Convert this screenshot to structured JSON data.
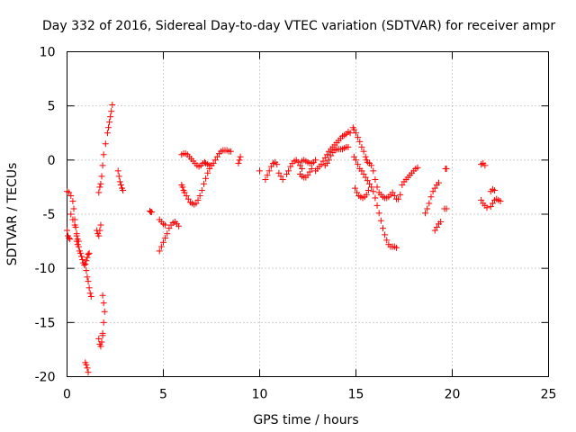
{
  "chart_data": {
    "type": "scatter",
    "title": "Day 332 of 2016, Sidereal Day-to-day VTEC variation (SDTVAR) for receiver ampr",
    "xlabel": "GPS time / hours",
    "ylabel": "SDTVAR / TECUs",
    "xlim": [
      0,
      25
    ],
    "ylim": [
      -20,
      10
    ],
    "xticks": [
      0,
      5,
      10,
      15,
      20,
      25
    ],
    "yticks": [
      10,
      5,
      0,
      -5,
      -10,
      -15,
      -20
    ],
    "grid": true,
    "marker": "plus",
    "marker_color": "#ff0000",
    "tracks": [
      [
        [
          0.0,
          -6.5
        ],
        [
          0.05,
          -7.0
        ],
        [
          0.1,
          -7.2
        ],
        [
          0.15,
          -7.3
        ]
      ],
      [
        [
          0.0,
          -2.9
        ],
        [
          0.1,
          -3.0
        ],
        [
          0.2,
          -3.3
        ],
        [
          0.3,
          -3.8
        ],
        [
          0.35,
          -4.5
        ],
        [
          0.4,
          -5.5
        ],
        [
          0.45,
          -6.2
        ],
        [
          0.5,
          -7.0
        ],
        [
          0.55,
          -7.3
        ],
        [
          0.6,
          -7.5
        ]
      ],
      [
        [
          0.2,
          -5.0
        ],
        [
          0.3,
          -5.5
        ],
        [
          0.4,
          -6.0
        ],
        [
          0.5,
          -6.8
        ]
      ],
      [
        [
          0.5,
          -7.5
        ],
        [
          0.55,
          -7.8
        ],
        [
          0.6,
          -8.0
        ],
        [
          0.65,
          -8.4
        ],
        [
          0.7,
          -8.6
        ],
        [
          0.75,
          -8.9
        ],
        [
          0.8,
          -9.2
        ],
        [
          0.85,
          -9.5
        ],
        [
          0.9,
          -9.7
        ],
        [
          0.95,
          -9.6
        ],
        [
          1.0,
          -9.3
        ],
        [
          1.05,
          -9.0
        ],
        [
          1.1,
          -8.7
        ],
        [
          1.15,
          -8.6
        ]
      ],
      [
        [
          1.0,
          -10.2
        ],
        [
          1.05,
          -10.8
        ],
        [
          1.1,
          -11.2
        ],
        [
          1.15,
          -11.8
        ],
        [
          1.2,
          -12.3
        ],
        [
          1.25,
          -12.6
        ]
      ],
      [
        [
          0.95,
          -18.7
        ],
        [
          1.0,
          -18.9
        ],
        [
          1.05,
          -19.2
        ],
        [
          1.1,
          -19.6
        ]
      ],
      [
        [
          1.55,
          -6.5
        ],
        [
          1.6,
          -6.8
        ],
        [
          1.65,
          -7.0
        ],
        [
          1.7,
          -6.5
        ],
        [
          1.75,
          -6.0
        ]
      ],
      [
        [
          1.65,
          -16.5
        ],
        [
          1.7,
          -17.0
        ],
        [
          1.75,
          -17.2
        ],
        [
          1.8,
          -16.8
        ],
        [
          1.85,
          -16.2
        ]
      ],
      [
        [
          1.65,
          -3.0
        ],
        [
          1.7,
          -2.5
        ],
        [
          1.75,
          -2.2
        ],
        [
          1.8,
          -1.5
        ]
      ],
      [
        [
          1.85,
          -12.5
        ],
        [
          1.9,
          -13.2
        ],
        [
          1.95,
          -14.0
        ],
        [
          1.9,
          -15.0
        ],
        [
          1.85,
          -16.0
        ]
      ],
      [
        [
          1.85,
          -0.5
        ],
        [
          1.9,
          0.5
        ],
        [
          2.0,
          1.5
        ],
        [
          2.1,
          2.5
        ],
        [
          2.15,
          3.0
        ],
        [
          2.2,
          3.5
        ],
        [
          2.25,
          4.0
        ],
        [
          2.3,
          4.5
        ],
        [
          2.35,
          5.1
        ]
      ],
      [
        [
          2.65,
          -1.0
        ],
        [
          2.7,
          -1.5
        ],
        [
          2.75,
          -2.0
        ],
        [
          2.8,
          -2.3
        ],
        [
          2.85,
          -2.6
        ],
        [
          2.9,
          -2.8
        ]
      ],
      [
        [
          4.3,
          -4.7
        ],
        [
          4.35,
          -4.8
        ],
        [
          4.4,
          -4.8
        ]
      ],
      [
        [
          4.8,
          -8.4
        ],
        [
          4.9,
          -8.0
        ],
        [
          5.0,
          -7.6
        ],
        [
          5.1,
          -7.2
        ],
        [
          5.2,
          -6.8
        ],
        [
          5.3,
          -6.3
        ],
        [
          5.4,
          -6.0
        ],
        [
          5.5,
          -5.8
        ],
        [
          5.6,
          -5.7
        ],
        [
          5.7,
          -5.9
        ],
        [
          5.8,
          -6.1
        ]
      ],
      [
        [
          4.8,
          -5.5
        ],
        [
          4.9,
          -5.7
        ],
        [
          5.0,
          -5.9
        ],
        [
          5.1,
          -6.0
        ]
      ],
      [
        [
          5.95,
          -2.3
        ],
        [
          6.0,
          -2.5
        ],
        [
          6.05,
          -2.8
        ],
        [
          6.1,
          -3.0
        ],
        [
          6.2,
          -3.3
        ],
        [
          6.3,
          -3.6
        ],
        [
          6.4,
          -3.9
        ],
        [
          6.5,
          -4.0
        ],
        [
          6.6,
          -4.1
        ],
        [
          6.7,
          -4.0
        ],
        [
          6.8,
          -3.7
        ],
        [
          6.9,
          -3.3
        ],
        [
          7.0,
          -2.8
        ],
        [
          7.1,
          -2.2
        ],
        [
          7.2,
          -1.7
        ],
        [
          7.3,
          -1.2
        ],
        [
          7.4,
          -0.8
        ],
        [
          7.5,
          -0.5
        ]
      ],
      [
        [
          5.95,
          0.5
        ],
        [
          6.05,
          0.6
        ],
        [
          6.15,
          0.6
        ],
        [
          6.25,
          0.5
        ],
        [
          6.35,
          0.3
        ],
        [
          6.45,
          0.1
        ],
        [
          6.55,
          -0.1
        ],
        [
          6.65,
          -0.3
        ],
        [
          6.75,
          -0.5
        ],
        [
          6.85,
          -0.6
        ],
        [
          6.95,
          -0.5
        ],
        [
          7.05,
          -0.3
        ],
        [
          7.15,
          -0.2
        ]
      ],
      [
        [
          7.2,
          -0.3
        ],
        [
          7.3,
          -0.4
        ],
        [
          7.4,
          -0.5
        ],
        [
          7.5,
          -0.5
        ],
        [
          7.6,
          -0.3
        ],
        [
          7.7,
          0.0
        ],
        [
          7.8,
          0.3
        ],
        [
          7.9,
          0.6
        ],
        [
          8.0,
          0.8
        ],
        [
          8.1,
          0.9
        ],
        [
          8.2,
          0.9
        ],
        [
          8.3,
          0.9
        ],
        [
          8.4,
          0.8
        ],
        [
          8.5,
          0.8
        ]
      ],
      [
        [
          8.9,
          -0.3
        ],
        [
          8.95,
          0.0
        ],
        [
          9.0,
          0.3
        ]
      ],
      [
        [
          10.0,
          -1.0
        ]
      ],
      [
        [
          10.3,
          -1.8
        ],
        [
          10.4,
          -1.4
        ],
        [
          10.5,
          -1.0
        ],
        [
          10.6,
          -0.6
        ],
        [
          10.7,
          -0.3
        ],
        [
          10.8,
          -0.2
        ],
        [
          10.9,
          -0.4
        ]
      ],
      [
        [
          11.0,
          -1.2
        ],
        [
          11.1,
          -1.5
        ],
        [
          11.2,
          -1.8
        ]
      ],
      [
        [
          11.4,
          -1.3
        ],
        [
          11.5,
          -1.0
        ],
        [
          11.6,
          -0.6
        ],
        [
          11.7,
          -0.3
        ],
        [
          11.8,
          -0.1
        ],
        [
          11.9,
          0.0
        ],
        [
          12.0,
          -0.2
        ],
        [
          12.1,
          -0.5
        ],
        [
          12.2,
          -0.8
        ]
      ],
      [
        [
          12.1,
          -1.3
        ],
        [
          12.2,
          -1.5
        ],
        [
          12.3,
          -1.6
        ],
        [
          12.4,
          -1.6
        ],
        [
          12.5,
          -1.4
        ],
        [
          12.6,
          -1.1
        ],
        [
          12.7,
          -0.8
        ]
      ],
      [
        [
          12.2,
          -0.1
        ],
        [
          12.3,
          0.0
        ],
        [
          12.4,
          -0.1
        ],
        [
          12.5,
          -0.2
        ],
        [
          12.6,
          -0.3
        ],
        [
          12.7,
          -0.3
        ],
        [
          12.8,
          -0.2
        ],
        [
          12.9,
          0.0
        ]
      ],
      [
        [
          12.9,
          -1.0
        ],
        [
          13.0,
          -0.8
        ],
        [
          13.1,
          -0.6
        ],
        [
          13.2,
          -0.4
        ],
        [
          13.3,
          -0.1
        ],
        [
          13.4,
          0.2
        ],
        [
          13.5,
          0.5
        ],
        [
          13.6,
          0.8
        ],
        [
          13.7,
          1.0
        ],
        [
          13.8,
          1.2
        ],
        [
          13.9,
          1.4
        ],
        [
          14.0,
          1.6
        ],
        [
          14.1,
          1.8
        ],
        [
          14.2,
          2.0
        ],
        [
          14.3,
          2.2
        ],
        [
          14.4,
          2.3
        ],
        [
          14.5,
          2.4
        ],
        [
          14.6,
          2.6
        ],
        [
          14.7,
          2.5
        ]
      ],
      [
        [
          13.4,
          -0.5
        ],
        [
          13.5,
          -0.3
        ],
        [
          13.6,
          0.0
        ],
        [
          13.7,
          0.4
        ],
        [
          13.8,
          0.7
        ],
        [
          13.9,
          0.9
        ],
        [
          14.0,
          1.0
        ],
        [
          14.1,
          1.0
        ],
        [
          14.2,
          1.0
        ],
        [
          14.3,
          1.0
        ],
        [
          14.4,
          1.1
        ],
        [
          14.5,
          1.2
        ],
        [
          14.6,
          1.2
        ]
      ],
      [
        [
          14.85,
          3.0
        ],
        [
          14.9,
          2.8
        ],
        [
          15.0,
          2.5
        ],
        [
          15.1,
          2.1
        ],
        [
          15.2,
          1.7
        ],
        [
          15.3,
          1.2
        ],
        [
          15.4,
          0.8
        ],
        [
          15.5,
          0.3
        ],
        [
          15.55,
          0.0
        ]
      ],
      [
        [
          14.9,
          0.3
        ],
        [
          15.0,
          0.0
        ],
        [
          15.1,
          -0.4
        ],
        [
          15.2,
          -0.8
        ],
        [
          15.3,
          -1.0
        ],
        [
          15.4,
          -1.3
        ],
        [
          15.5,
          -1.6
        ],
        [
          15.6,
          -1.9
        ],
        [
          15.7,
          -2.2
        ],
        [
          15.8,
          -2.5
        ],
        [
          15.9,
          -2.9
        ],
        [
          16.0,
          -3.5
        ],
        [
          16.1,
          -4.2
        ],
        [
          16.2,
          -4.9
        ],
        [
          16.3,
          -5.6
        ],
        [
          16.4,
          -6.3
        ],
        [
          16.5,
          -6.9
        ],
        [
          16.6,
          -7.4
        ],
        [
          16.7,
          -7.8
        ],
        [
          16.8,
          -8.0
        ],
        [
          16.9,
          -8.0
        ],
        [
          17.0,
          -8.0
        ],
        [
          17.1,
          -8.1
        ]
      ],
      [
        [
          14.95,
          -2.6
        ],
        [
          15.05,
          -3.0
        ],
        [
          15.15,
          -3.3
        ],
        [
          15.25,
          -3.4
        ],
        [
          15.35,
          -3.5
        ],
        [
          15.45,
          -3.4
        ],
        [
          15.55,
          -3.2
        ],
        [
          15.65,
          -2.8
        ]
      ],
      [
        [
          15.6,
          -0.2
        ],
        [
          15.7,
          -0.3
        ],
        [
          15.8,
          -0.5
        ],
        [
          15.9,
          -1.0
        ],
        [
          16.0,
          -1.8
        ],
        [
          16.1,
          -2.5
        ],
        [
          16.2,
          -3.0
        ],
        [
          16.3,
          -3.2
        ],
        [
          16.4,
          -3.4
        ],
        [
          16.5,
          -3.5
        ],
        [
          16.6,
          -3.5
        ],
        [
          16.7,
          -3.4
        ],
        [
          16.8,
          -3.2
        ],
        [
          16.9,
          -3.0
        ],
        [
          17.0,
          -3.3
        ],
        [
          17.1,
          -3.6
        ],
        [
          17.2,
          -3.6
        ],
        [
          17.3,
          -3.2
        ]
      ],
      [
        [
          17.4,
          -2.3
        ],
        [
          17.5,
          -2.0
        ],
        [
          17.6,
          -1.8
        ],
        [
          17.7,
          -1.6
        ],
        [
          17.8,
          -1.4
        ],
        [
          17.9,
          -1.2
        ],
        [
          18.0,
          -1.0
        ],
        [
          18.1,
          -0.8
        ],
        [
          18.2,
          -0.7
        ]
      ],
      [
        [
          18.6,
          -4.9
        ],
        [
          18.7,
          -4.5
        ],
        [
          18.8,
          -4.0
        ],
        [
          18.9,
          -3.4
        ],
        [
          19.0,
          -2.9
        ],
        [
          19.1,
          -2.6
        ],
        [
          19.2,
          -2.3
        ],
        [
          19.3,
          -2.1
        ]
      ],
      [
        [
          19.1,
          -6.5
        ],
        [
          19.2,
          -6.2
        ],
        [
          19.3,
          -5.9
        ],
        [
          19.4,
          -5.7
        ]
      ],
      [
        [
          19.6,
          -4.5
        ],
        [
          19.7,
          -4.5
        ]
      ],
      [
        [
          19.65,
          -0.8
        ],
        [
          19.7,
          -0.8
        ]
      ],
      [
        [
          21.5,
          -0.4
        ],
        [
          21.6,
          -0.3
        ],
        [
          21.7,
          -0.5
        ]
      ],
      [
        [
          21.5,
          -3.7
        ],
        [
          21.6,
          -4.0
        ],
        [
          21.7,
          -4.2
        ],
        [
          21.8,
          -4.4
        ]
      ],
      [
        [
          22.0,
          -4.3
        ],
        [
          22.1,
          -4.0
        ],
        [
          22.2,
          -3.7
        ],
        [
          22.3,
          -3.6
        ],
        [
          22.4,
          -3.7
        ],
        [
          22.5,
          -3.8
        ]
      ],
      [
        [
          22.0,
          -2.9
        ],
        [
          22.1,
          -2.7
        ],
        [
          22.2,
          -2.8
        ]
      ]
    ]
  }
}
